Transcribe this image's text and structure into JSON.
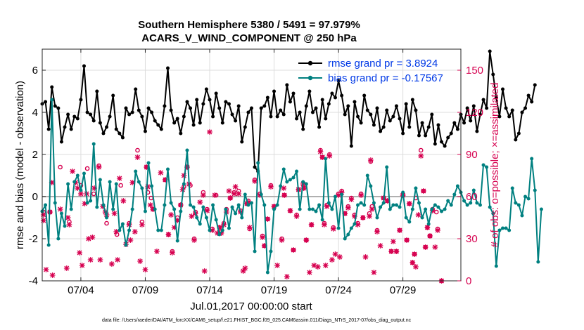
{
  "chart_data": {
    "type": "line",
    "title": "Southern Hemisphere 5380 / 5491 = 97.979%",
    "subtitle": "ACARS_V_WIND_COMPONENT @ 250 hPa",
    "xlabel": "Jul.01,2017 00:00:00 start",
    "ylabel_left": "rmse and bias (model - observation)",
    "ylabel_right": "# of obs: o=possible; ×=assimilated",
    "footnote": "data file: /Users/raeder/DAI/ATM_forcXX/CAM6_setup/f.e21.FHIST_BGC.f09_025.CAM6assim.011/Diags_NTrS_2017-07/obs_diag_output.nc",
    "xlim": [
      1,
      33.5
    ],
    "ylim_left": [
      -4,
      7
    ],
    "ylim_right": [
      0,
      165
    ],
    "yticks_left": [
      "-4",
      "-2",
      "0",
      "2",
      "4",
      "6"
    ],
    "yticks_left_values": [
      -4,
      -2,
      0,
      2,
      4,
      6
    ],
    "yticks_right": [
      "0",
      "30",
      "60",
      "90",
      "120",
      "150"
    ],
    "yticks_right_values": [
      0,
      30,
      60,
      90,
      120,
      150
    ],
    "xticks": [
      "07/04",
      "07/09",
      "07/14",
      "07/19",
      "07/24",
      "07/29"
    ],
    "xticks_values": [
      4,
      9,
      14,
      19,
      24,
      29
    ],
    "grid": true,
    "reference_line": 0,
    "legend": {
      "position": "top-right",
      "entries": [
        "rmse grand pr = 3.8924",
        "bias grand pr = -0.17567"
      ]
    },
    "colors": {
      "rmse": "#000000",
      "bias": "#008080",
      "obs": "#d6004f",
      "zero_line": "#b0b0b0"
    },
    "series": [
      {
        "name": "rmse grand pr = 3.8924",
        "axis": "left",
        "x_start": 1.0,
        "x_step": 0.25,
        "values": [
          4.4,
          4.5,
          3.2,
          5.2,
          4.3,
          4.2,
          2.6,
          3.3,
          3.9,
          3.2,
          3.8,
          3.7,
          4.6,
          6.2,
          4.0,
          3.9,
          3.6,
          5.0,
          3.5,
          3.0,
          3.3,
          3.8,
          4.8,
          3.2,
          3.0,
          2.8,
          4.2,
          3.9,
          4.0,
          5.1,
          4.1,
          3.8,
          3.1,
          4.2,
          4.0,
          3.6,
          3.4,
          3.2,
          4.3,
          6.1,
          4.1,
          3.5,
          3.7,
          3.0,
          3.8,
          4.5,
          4.2,
          3.4,
          4.6,
          3.5,
          4.4,
          5.1,
          4.6,
          3.8,
          4.9,
          4.2,
          3.5,
          4.5,
          4.4,
          3.9,
          3.6,
          4.3,
          2.6,
          3.3,
          4.0,
          4.2,
          1.4,
          1.2,
          4.2,
          4.3,
          4.7,
          3.8,
          5.0,
          3.8,
          4.1,
          3.9,
          5.3,
          4.5,
          4.9,
          3.7,
          4.0,
          3.2,
          4.3,
          5.0,
          4.0,
          4.2,
          3.3,
          4.6,
          3.7,
          4.4,
          4.9,
          4.7,
          5.5,
          4.8,
          3.9,
          4.3,
          2.4,
          4.5,
          3.8,
          3.5,
          4.8,
          4.1,
          3.9,
          3.4,
          4.2,
          3.1,
          3.3,
          4.1,
          3.6,
          3.8,
          4.3,
          3.7,
          3.0,
          4.4,
          3.3,
          4.6,
          4.1,
          2.9,
          3.5,
          2.9,
          3.3,
          3.9,
          2.5,
          3.4,
          2.6,
          2.4,
          2.8,
          3.0,
          3.5,
          3.2,
          3.9,
          3.5,
          4.2,
          3.6,
          4.3,
          3.1,
          3.9,
          4.6,
          4.2,
          6.9,
          5.8,
          4.7,
          3.8,
          5.1,
          4.2,
          3.8,
          4.1,
          2.7,
          3.0,
          4.0,
          4.2,
          4.8,
          4.5,
          5.3
        ]
      },
      {
        "name": "bias grand pr = -0.17567",
        "axis": "left",
        "x_start": 1.0,
        "x_step": 0.25,
        "values": [
          -0.7,
          -0.4,
          -2.3,
          4.6,
          -0.3,
          -2.0,
          -0.8,
          -1.4,
          0.6,
          -0.6,
          0.7,
          1.0,
          0.3,
          1.1,
          -0.3,
          -0.2,
          2.5,
          -0.5,
          0.8,
          -0.4,
          -1.0,
          0.7,
          -0.6,
          0.6,
          -1.6,
          -1.3,
          -2.3,
          -1.6,
          -0.6,
          1.2,
          0.7,
          0.4,
          -0.7,
          1.6,
          0.5,
          -0.6,
          -1.6,
          -1.6,
          -0.4,
          1.3,
          -0.3,
          -0.6,
          -2.1,
          -0.7,
          0.6,
          2.2,
          -0.4,
          -0.5,
          -1.0,
          -1.3,
          -0.5,
          -1.0,
          -1.6,
          -0.4,
          -1.1,
          -1.8,
          -1.6,
          -0.6,
          -1.5,
          -0.5,
          -0.8,
          -0.4,
          -1.0,
          0.1,
          -0.4,
          -0.3,
          -2.6,
          1.6,
          0.1,
          -0.4,
          -3.6,
          -2.6,
          -0.6,
          -0.4,
          0.5,
          1.3,
          0.7,
          0.8,
          0.9,
          1.2,
          -0.6,
          0.7,
          0.6,
          -0.6,
          -0.6,
          -0.7,
          -0.4,
          -1.1,
          1.8,
          -0.3,
          -0.6,
          0.0,
          -1.5,
          0.1,
          -2.0,
          -1.8,
          -1.5,
          -1.3,
          -0.4,
          -0.3,
          -0.4,
          1.0,
          0.5,
          -0.3,
          -1.0,
          -0.5,
          -0.3,
          1.4,
          -0.6,
          -0.4,
          -0.4,
          -0.5,
          0.2,
          -1.0,
          -1.2,
          -0.6,
          0.4,
          -0.3,
          -1.0,
          -0.6,
          -1.3,
          -0.6,
          -0.4,
          -0.5,
          -0.7,
          -0.6,
          -0.2,
          -0.4,
          0.1,
          0.5,
          0.2,
          -0.2,
          -0.4,
          -0.3,
          0.3,
          -0.3,
          -0.4,
          1.5,
          1.4,
          -0.5,
          -0.8,
          -3.3,
          -1.6,
          -1.5,
          -1.5,
          -1.6,
          0.4,
          -0.3,
          -0.4,
          -0.9,
          0.0,
          -0.1,
          1.8,
          0.3,
          -3.1,
          -0.6
        ]
      }
    ],
    "obs_count_assimilated": [
      [
        1.1,
        47
      ],
      [
        1.1,
        43
      ],
      [
        1.3,
        8
      ],
      [
        1.6,
        49
      ],
      [
        1.75,
        70
      ],
      [
        1.8,
        4
      ],
      [
        2.4,
        51
      ],
      [
        2.9,
        9
      ],
      [
        3.0,
        45
      ],
      [
        3.1,
        40
      ],
      [
        3.35,
        78
      ],
      [
        3.6,
        70
      ],
      [
        3.75,
        66
      ],
      [
        3.9,
        20
      ],
      [
        4.0,
        62
      ],
      [
        4.1,
        11
      ],
      [
        4.3,
        55
      ],
      [
        4.45,
        62
      ],
      [
        4.6,
        30
      ],
      [
        4.75,
        15
      ],
      [
        4.9,
        31
      ],
      [
        5.05,
        66
      ],
      [
        5.4,
        81
      ],
      [
        5.5,
        15
      ],
      [
        5.7,
        53
      ],
      [
        5.9,
        49
      ],
      [
        6.0,
        47
      ],
      [
        6.4,
        12
      ],
      [
        6.6,
        48
      ],
      [
        6.75,
        35
      ],
      [
        6.85,
        15
      ],
      [
        7.0,
        73
      ],
      [
        7.3,
        57
      ],
      [
        7.5,
        26
      ],
      [
        7.75,
        40
      ],
      [
        7.85,
        29
      ],
      [
        8.0,
        70
      ],
      [
        8.2,
        35
      ],
      [
        8.4,
        88
      ],
      [
        8.6,
        14
      ],
      [
        8.75,
        40
      ],
      [
        9.0,
        8
      ],
      [
        9.1,
        81
      ],
      [
        9.2,
        67
      ],
      [
        9.4,
        54
      ],
      [
        9.6,
        51
      ],
      [
        9.9,
        21
      ],
      [
        10.2,
        77
      ],
      [
        10.55,
        72
      ],
      [
        10.8,
        33
      ],
      [
        11.0,
        47
      ],
      [
        11.1,
        20
      ],
      [
        11.25,
        38
      ],
      [
        11.5,
        43
      ],
      [
        11.75,
        54
      ],
      [
        11.9,
        65
      ],
      [
        12.0,
        75
      ],
      [
        12.25,
        81
      ],
      [
        12.4,
        69
      ],
      [
        12.6,
        46
      ],
      [
        12.8,
        29
      ],
      [
        12.9,
        48
      ],
      [
        13.25,
        56
      ],
      [
        13.5,
        61
      ],
      [
        13.6,
        7
      ],
      [
        13.8,
        50
      ],
      [
        14.0,
        106
      ],
      [
        14.2,
        36
      ],
      [
        14.4,
        61
      ],
      [
        14.6,
        34
      ],
      [
        14.8,
        38
      ],
      [
        14.9,
        34
      ],
      [
        15.1,
        40
      ],
      [
        15.3,
        49
      ],
      [
        15.5,
        64
      ],
      [
        15.6,
        59
      ],
      [
        15.9,
        62
      ],
      [
        16.0,
        67
      ],
      [
        16.25,
        62
      ],
      [
        16.4,
        49
      ],
      [
        16.6,
        7
      ],
      [
        16.75,
        9
      ],
      [
        16.9,
        55
      ],
      [
        17.0,
        56
      ],
      [
        17.1,
        38
      ],
      [
        17.5,
        71
      ],
      [
        17.9,
        61
      ],
      [
        18.1,
        31
      ],
      [
        18.25,
        25
      ],
      [
        18.5,
        44
      ],
      [
        18.75,
        67
      ],
      [
        19.0,
        53
      ],
      [
        19.25,
        11
      ],
      [
        19.6,
        29
      ],
      [
        19.75,
        66
      ],
      [
        19.8,
        61
      ],
      [
        20.0,
        3
      ],
      [
        20.25,
        50
      ],
      [
        20.5,
        22
      ],
      [
        20.75,
        46
      ],
      [
        20.9,
        65
      ],
      [
        21.25,
        69
      ],
      [
        21.3,
        66
      ],
      [
        21.5,
        29
      ],
      [
        21.75,
        6
      ],
      [
        21.9,
        40
      ],
      [
        22.1,
        11
      ],
      [
        22.4,
        10
      ],
      [
        22.6,
        92
      ],
      [
        22.75,
        88
      ],
      [
        22.9,
        40
      ],
      [
        23.0,
        11
      ],
      [
        23.1,
        53
      ],
      [
        23.3,
        89
      ],
      [
        23.5,
        15
      ],
      [
        23.6,
        37
      ],
      [
        23.75,
        19
      ],
      [
        24.0,
        61
      ],
      [
        24.1,
        17
      ],
      [
        24.25,
        63
      ],
      [
        24.5,
        48
      ],
      [
        24.75,
        52
      ],
      [
        25.0,
        58
      ],
      [
        25.25,
        46
      ],
      [
        25.5,
        40
      ],
      [
        25.75,
        61
      ],
      [
        25.9,
        45
      ],
      [
        26.1,
        17
      ],
      [
        26.4,
        46
      ],
      [
        26.5,
        86
      ],
      [
        26.6,
        51
      ],
      [
        26.75,
        6
      ],
      [
        27.0,
        35
      ],
      [
        27.25,
        25
      ],
      [
        27.5,
        59
      ],
      [
        27.8,
        57
      ],
      [
        28.1,
        21
      ],
      [
        28.25,
        28
      ],
      [
        28.5,
        21
      ],
      [
        28.75,
        36
      ],
      [
        29.0,
        61
      ],
      [
        29.3,
        29
      ],
      [
        29.5,
        55
      ],
      [
        29.75,
        13
      ],
      [
        29.9,
        19
      ],
      [
        30.0,
        10
      ],
      [
        30.2,
        47
      ],
      [
        30.4,
        89
      ],
      [
        30.6,
        64
      ],
      [
        30.75,
        24
      ],
      [
        30.9,
        38
      ],
      [
        31.1,
        32
      ],
      [
        31.3,
        50
      ],
      [
        31.5,
        24
      ],
      [
        31.7,
        36
      ],
      [
        32.0,
        0
      ]
    ],
    "obs_count_possible": [
      [
        1.1,
        49
      ],
      [
        1.6,
        49
      ],
      [
        2.4,
        81
      ],
      [
        3.1,
        42
      ],
      [
        4.0,
        68
      ],
      [
        4.5,
        80
      ],
      [
        5.0,
        62
      ],
      [
        5.4,
        82
      ],
      [
        6.0,
        41
      ],
      [
        6.8,
        33
      ],
      [
        7.1,
        68
      ],
      [
        7.75,
        41
      ],
      [
        8.4,
        93
      ],
      [
        8.75,
        42
      ],
      [
        9.1,
        81
      ],
      [
        9.2,
        63
      ],
      [
        9.45,
        59
      ],
      [
        9.6,
        51
      ],
      [
        10.55,
        72
      ],
      [
        10.8,
        33
      ],
      [
        11.1,
        21
      ],
      [
        11.5,
        45
      ],
      [
        11.75,
        54
      ],
      [
        12.0,
        67
      ],
      [
        12.25,
        81
      ],
      [
        12.5,
        68
      ],
      [
        12.8,
        30
      ],
      [
        12.9,
        49
      ],
      [
        13.5,
        63
      ],
      [
        13.8,
        51
      ],
      [
        14.2,
        37
      ],
      [
        14.5,
        61
      ],
      [
        14.75,
        38
      ],
      [
        14.9,
        35
      ],
      [
        15.1,
        41
      ],
      [
        15.3,
        51
      ],
      [
        15.6,
        59
      ],
      [
        15.9,
        63
      ],
      [
        16.25,
        64
      ],
      [
        16.4,
        50
      ],
      [
        16.9,
        55
      ],
      [
        17.0,
        57
      ],
      [
        17.1,
        37
      ],
      [
        17.5,
        72
      ],
      [
        17.9,
        62
      ],
      [
        18.1,
        32
      ],
      [
        18.25,
        25
      ],
      [
        18.5,
        44
      ],
      [
        18.75,
        68
      ],
      [
        19.0,
        53
      ],
      [
        19.6,
        30
      ],
      [
        19.8,
        61
      ],
      [
        20.25,
        50
      ],
      [
        20.5,
        22
      ],
      [
        20.75,
        47
      ],
      [
        20.9,
        65
      ],
      [
        21.3,
        66
      ],
      [
        21.5,
        29
      ],
      [
        21.9,
        40
      ],
      [
        22.6,
        93
      ],
      [
        22.75,
        88
      ],
      [
        22.9,
        41
      ],
      [
        23.1,
        54
      ],
      [
        23.3,
        90
      ],
      [
        23.6,
        38
      ],
      [
        24.0,
        62
      ],
      [
        24.25,
        64
      ],
      [
        24.5,
        48
      ],
      [
        24.75,
        53
      ],
      [
        25.0,
        59
      ],
      [
        25.25,
        47
      ],
      [
        25.5,
        41
      ],
      [
        25.75,
        62
      ],
      [
        25.9,
        45
      ],
      [
        26.4,
        48
      ],
      [
        26.5,
        85
      ],
      [
        26.6,
        53
      ],
      [
        27.0,
        36
      ],
      [
        27.5,
        59
      ],
      [
        27.8,
        57
      ],
      [
        28.1,
        21
      ],
      [
        28.5,
        21
      ],
      [
        28.75,
        36
      ],
      [
        29.0,
        61
      ],
      [
        29.3,
        29
      ],
      [
        29.5,
        55
      ],
      [
        29.75,
        13
      ],
      [
        29.9,
        19
      ],
      [
        30.0,
        59
      ],
      [
        30.4,
        93
      ],
      [
        30.6,
        64
      ],
      [
        30.75,
        24
      ],
      [
        30.9,
        38
      ],
      [
        31.1,
        32
      ],
      [
        31.3,
        51
      ],
      [
        31.6,
        49
      ],
      [
        31.7,
        37
      ],
      [
        32.0,
        0
      ]
    ]
  }
}
